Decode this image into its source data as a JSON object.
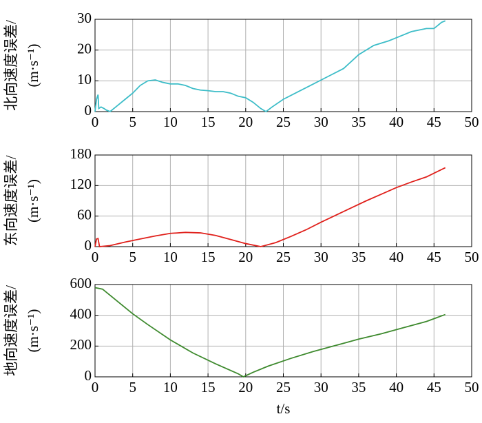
{
  "chart_data": [
    {
      "type": "line",
      "ylabel": [
        "北向速度误差/",
        "(m·s⁻¹)"
      ],
      "x": [
        0,
        0.2,
        0.4,
        0.5,
        0.8,
        1.2,
        1.5,
        2,
        3,
        4,
        5,
        6,
        7,
        8,
        9,
        10,
        11,
        12,
        13,
        14,
        15,
        16,
        17,
        18,
        19,
        20,
        21,
        22,
        22.7,
        23.5,
        25,
        27,
        29,
        31,
        33,
        35,
        37,
        39,
        40,
        42,
        44,
        45,
        46,
        46.5
      ],
      "series": [
        {
          "color": "#3dbdc8",
          "values": [
            0,
            4,
            5.5,
            1,
            1.5,
            1,
            0.5,
            0,
            2,
            4,
            6,
            8.5,
            10,
            10.3,
            9.5,
            9,
            9,
            8.5,
            7.5,
            7,
            6.8,
            6.5,
            6.5,
            6,
            5,
            4.5,
            3,
            1,
            0,
            1.5,
            4,
            6.5,
            9,
            11.5,
            14,
            18.5,
            21.5,
            23,
            24,
            26,
            27,
            27,
            29,
            29.5
          ]
        }
      ],
      "xlim": [
        0,
        50
      ],
      "xticks": [
        0,
        5,
        10,
        15,
        20,
        25,
        30,
        35,
        40,
        45,
        50
      ],
      "ylim": [
        0,
        30
      ],
      "yticks": [
        0,
        10,
        20,
        30
      ],
      "grid": true
    },
    {
      "type": "line",
      "ylabel": [
        "东向速度误差/",
        "(m·s⁻¹)"
      ],
      "x": [
        0,
        0.2,
        0.4,
        0.6,
        2,
        4,
        6,
        8,
        10,
        12,
        14,
        16,
        18,
        20,
        22,
        24,
        26,
        28,
        30,
        32,
        34,
        36,
        38,
        40,
        42,
        44,
        46.5
      ],
      "series": [
        {
          "color": "#e0201b",
          "values": [
            0,
            15,
            16,
            0,
            2,
            9,
            15,
            21,
            26,
            28,
            27,
            22,
            14,
            6,
            0,
            8,
            20,
            33,
            48,
            62,
            76,
            90,
            103,
            116,
            127,
            137,
            155
          ]
        }
      ],
      "xlim": [
        0,
        50
      ],
      "xticks": [
        0,
        5,
        10,
        15,
        20,
        25,
        30,
        35,
        40,
        45,
        50
      ],
      "ylim": [
        0,
        180
      ],
      "yticks": [
        0,
        60,
        120,
        180
      ],
      "grid": true
    },
    {
      "type": "line",
      "ylabel": [
        "地向速度误差/",
        "(m·s⁻¹)"
      ],
      "xlabel": "t/s",
      "x": [
        0,
        1,
        3,
        5,
        7,
        10,
        13,
        16,
        19,
        19.7,
        21,
        23,
        26,
        29,
        32,
        35,
        38,
        41,
        44,
        46.5
      ],
      "series": [
        {
          "color": "#3e8a2e",
          "values": [
            580,
            570,
            490,
            410,
            340,
            240,
            155,
            85,
            20,
            0,
            30,
            70,
            120,
            165,
            205,
            245,
            280,
            320,
            360,
            405
          ]
        }
      ],
      "xlim": [
        0,
        50
      ],
      "xticks": [
        0,
        5,
        10,
        15,
        20,
        25,
        30,
        35,
        40,
        45,
        50
      ],
      "ylim": [
        0,
        600
      ],
      "yticks": [
        0,
        200,
        400,
        600
      ],
      "grid": true
    }
  ]
}
